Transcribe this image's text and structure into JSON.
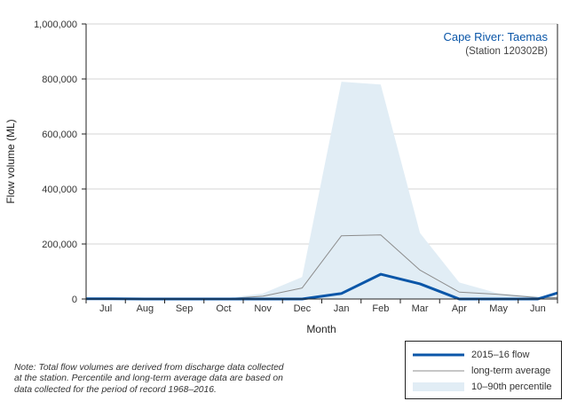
{
  "chart_data": {
    "type": "line",
    "title": "Cape River: Taemas",
    "subtitle": "(Station 120302B)",
    "xlabel": "Month",
    "ylabel": "Flow volume (ML)",
    "ylim": [
      0,
      1000000
    ],
    "yticks": [
      0,
      200000,
      400000,
      600000,
      800000,
      1000000
    ],
    "ytick_labels": [
      "0",
      "200,000",
      "400,000",
      "600,000",
      "800,000",
      "1,000,000"
    ],
    "categories": [
      "Jul",
      "Aug",
      "Sep",
      "Oct",
      "Nov",
      "Dec",
      "Jan",
      "Feb",
      "Mar",
      "Apr",
      "May",
      "Jun"
    ],
    "grid": "horizontal",
    "legend_placement": "bottom-right",
    "percentile_band": {
      "name": "10–90th percentile",
      "color": "#e1edf5",
      "x": [
        "Jul",
        "Aug",
        "Sep",
        "Oct",
        "Nov",
        "Dec",
        "Jan",
        "Feb",
        "Mar",
        "Apr",
        "May",
        "Jun"
      ],
      "upper": [
        5000,
        2000,
        2000,
        2000,
        20000,
        80000,
        790000,
        780000,
        240000,
        60000,
        20000,
        10000
      ],
      "lower": [
        0,
        0,
        0,
        0,
        0,
        0,
        0,
        0,
        0,
        0,
        0,
        0
      ]
    },
    "series": [
      {
        "name": "long-term average",
        "color": "#8c8c8c",
        "points": [
          [
            "start",
            1000
          ],
          [
            "Jul",
            1000
          ],
          [
            "Aug",
            500
          ],
          [
            "Sep",
            500
          ],
          [
            "Oct",
            500
          ],
          [
            "Nov",
            10000
          ],
          [
            "Dec",
            40000
          ],
          [
            "Jan",
            230000
          ],
          [
            "Feb",
            233000
          ],
          [
            "Mar",
            105000
          ],
          [
            "Apr",
            25000
          ],
          [
            "May",
            17000
          ],
          [
            "Jun",
            5000
          ],
          [
            "end",
            5000
          ]
        ]
      },
      {
        "name": "2015–16 flow",
        "color": "#0a56a8",
        "points": [
          [
            "start",
            1000
          ],
          [
            "Jul",
            1000
          ],
          [
            "Aug",
            0
          ],
          [
            "Sep",
            0
          ],
          [
            "Oct",
            0
          ],
          [
            "Nov",
            0
          ],
          [
            "Dec",
            0
          ],
          [
            "Jan",
            20000
          ],
          [
            "Feb",
            90000
          ],
          [
            "Mar",
            55000
          ],
          [
            "Apr",
            0
          ],
          [
            "May",
            0
          ],
          [
            "Jun",
            0
          ],
          [
            "end",
            22000
          ]
        ]
      }
    ]
  },
  "note": {
    "lines": [
      "Note: Total flow volumes are derived from discharge data collected",
      "at the station. Percentile and long-term average data are based on",
      "data collected for the period of record 1968–2016."
    ]
  }
}
